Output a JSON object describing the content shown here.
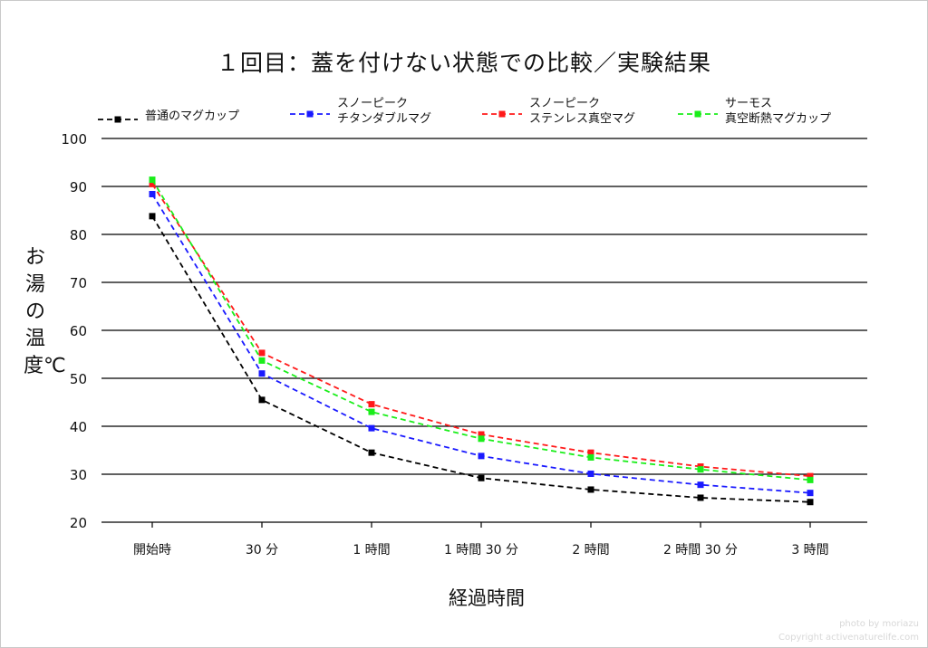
{
  "chart_data": {
    "type": "line",
    "title": "１回目：蓋を付けない状態での比較／実験結果",
    "xlabel": "経過時間",
    "ylabel": "お湯の温度℃",
    "categories": [
      "開始時",
      "30 分",
      "1 時間",
      "1 時間 30 分",
      "2 時間",
      "2 時間 30 分",
      "3 時間"
    ],
    "ylim": [
      20,
      100
    ],
    "yticks": [
      20,
      30,
      40,
      50,
      60,
      70,
      80,
      90,
      100
    ],
    "grid": "horizontal",
    "legend_position": "top",
    "series": [
      {
        "name": "普通のマグカップ",
        "color": "#000000",
        "values": [
          83.8,
          45.5,
          34.5,
          29.2,
          26.8,
          25.1,
          24.2
        ]
      },
      {
        "name": "スノーピーク\nチタンダブルマグ",
        "color": "#1a1aff",
        "values": [
          88.4,
          51.0,
          39.6,
          33.8,
          30.1,
          27.8,
          26.1
        ]
      },
      {
        "name": "スノーピーク\nステンレス真空マグ",
        "color": "#ff1a1a",
        "values": [
          90.5,
          55.3,
          44.6,
          38.3,
          34.5,
          31.6,
          29.6
        ]
      },
      {
        "name": "サーモス\n真空断熱マグカップ",
        "color": "#1aee1a",
        "values": [
          91.4,
          53.7,
          43.0,
          37.4,
          33.5,
          31.0,
          28.8
        ]
      }
    ]
  },
  "credit": {
    "line1": "photo by moriazu",
    "line2": "Copyright activenaturelife.com"
  }
}
